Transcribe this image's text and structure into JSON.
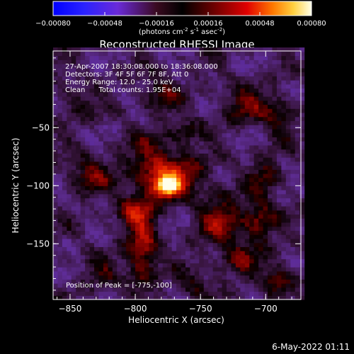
{
  "chart_data": {
    "type": "heatmap",
    "title": "Reconstructed RHESSI Image",
    "xlabel": "Heliocentric X (arcsec)",
    "ylabel": "Heliocentric Y (arcsec)",
    "xlim": [
      -863,
      -673
    ],
    "ylim": [
      -198,
      16
    ],
    "x_ticks": [
      -850,
      -800,
      -750,
      -700
    ],
    "y_ticks": [
      -50,
      -100,
      -150
    ],
    "colorbar": {
      "min": -0.0008,
      "max": 0.0008,
      "ticks": [
        "-0.00080",
        "-0.00048",
        "-0.00016",
        "0.00016",
        "0.00048",
        "0.00080"
      ],
      "unit_prefix": "(photons cm",
      "unit_exp1": "-2",
      "unit_mid": " s",
      "unit_exp2": "-1",
      "unit_mid2": " asec",
      "unit_exp3": "-2",
      "unit_suffix": ")"
    },
    "annotations": [
      "27-Apr-2007 18:30:08.000 to 18:36:08.000",
      "Detectors: 3F 4F 5F 6F 7F 8F, Att 0",
      "Energy Range: 12.0 - 25.0 keV",
      "Clean      Total counts: 1.95E+04"
    ],
    "peak_label": "Position of Peak = [-775,-100]",
    "peak": {
      "x": -775,
      "y": -100,
      "value": 0.0008
    },
    "sources": [
      {
        "x": -775,
        "y": -100,
        "sx": 7,
        "sy": 6,
        "amp": 0.00095
      },
      {
        "x": -785,
        "y": -85,
        "sx": 14,
        "sy": 18,
        "amp": 0.0004
      },
      {
        "x": -760,
        "y": -90,
        "sx": 12,
        "sy": 10,
        "amp": 0.0003
      },
      {
        "x": -795,
        "y": -155,
        "sx": 8,
        "sy": 22,
        "amp": 0.00045
      },
      {
        "x": -800,
        "y": -120,
        "sx": 10,
        "sy": 10,
        "amp": 0.0003
      },
      {
        "x": -735,
        "y": -130,
        "sx": 12,
        "sy": 16,
        "amp": 0.00035
      },
      {
        "x": -705,
        "y": -130,
        "sx": 9,
        "sy": 14,
        "amp": 0.00035
      },
      {
        "x": -690,
        "y": -180,
        "sx": 8,
        "sy": 10,
        "amp": 0.0003
      },
      {
        "x": -720,
        "y": -165,
        "sx": 10,
        "sy": 10,
        "amp": 0.00025
      },
      {
        "x": -835,
        "y": -90,
        "sx": 12,
        "sy": 10,
        "amp": 0.0003
      },
      {
        "x": -845,
        "y": -30,
        "sx": 10,
        "sy": 8,
        "amp": 0.0002
      },
      {
        "x": -780,
        "y": -20,
        "sx": 10,
        "sy": 10,
        "amp": 0.00025
      },
      {
        "x": -715,
        "y": -30,
        "sx": 12,
        "sy": 10,
        "amp": 0.0003
      },
      {
        "x": -690,
        "y": -40,
        "sx": 8,
        "sy": 12,
        "amp": 0.00025
      },
      {
        "x": -760,
        "y": -55,
        "sx": 8,
        "sy": 8,
        "amp": 0.0002
      },
      {
        "x": -700,
        "y": -90,
        "sx": 8,
        "sy": 10,
        "amp": 0.00025
      },
      {
        "x": -825,
        "y": -175,
        "sx": 10,
        "sy": 8,
        "amp": 0.0002
      },
      {
        "x": -755,
        "y": -185,
        "sx": 10,
        "sy": 8,
        "amp": 0.0002
      }
    ],
    "background_level": -0.0002
  },
  "timestamp": "6-May-2022 01:11"
}
